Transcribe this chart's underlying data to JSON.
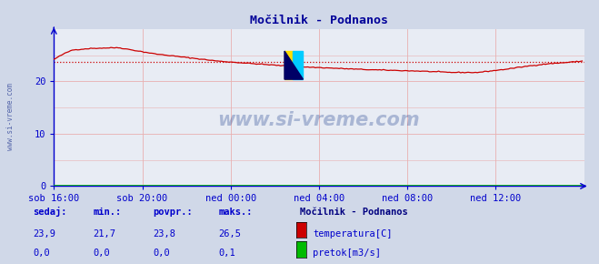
{
  "title": "Močilnik - Podnanos",
  "bg_color": "#d0d8e8",
  "plot_bg_color": "#e8ecf4",
  "grid_color": "#e8b0b0",
  "xlim": [
    0,
    288
  ],
  "ylim": [
    0,
    30
  ],
  "yticks": [
    0,
    10,
    20
  ],
  "xtick_labels": [
    "sob 16:00",
    "sob 20:00",
    "ned 00:00",
    "ned 04:00",
    "ned 08:00",
    "ned 12:00"
  ],
  "xtick_positions": [
    0,
    48,
    96,
    144,
    192,
    240
  ],
  "avg_temp": 23.8,
  "temp_color": "#cc0000",
  "flow_color": "#00bb00",
  "dashed_color": "#cc0000",
  "title_color": "#000099",
  "axis_color": "#0000cc",
  "spine_color": "#0000cc",
  "text_color": "#0000cc",
  "label_color": "#000080",
  "watermark": "www.si-vreme.com",
  "watermark_color": "#1a3a8a",
  "footer_title": "Močilnik - Podnanos",
  "sedaj": "23,9",
  "min_val": "21,7",
  "povpr": "23,8",
  "maks": "26,5",
  "sedaj2": "0,0",
  "min_val2": "0,0",
  "povpr2": "0,0",
  "maks2": "0,1"
}
